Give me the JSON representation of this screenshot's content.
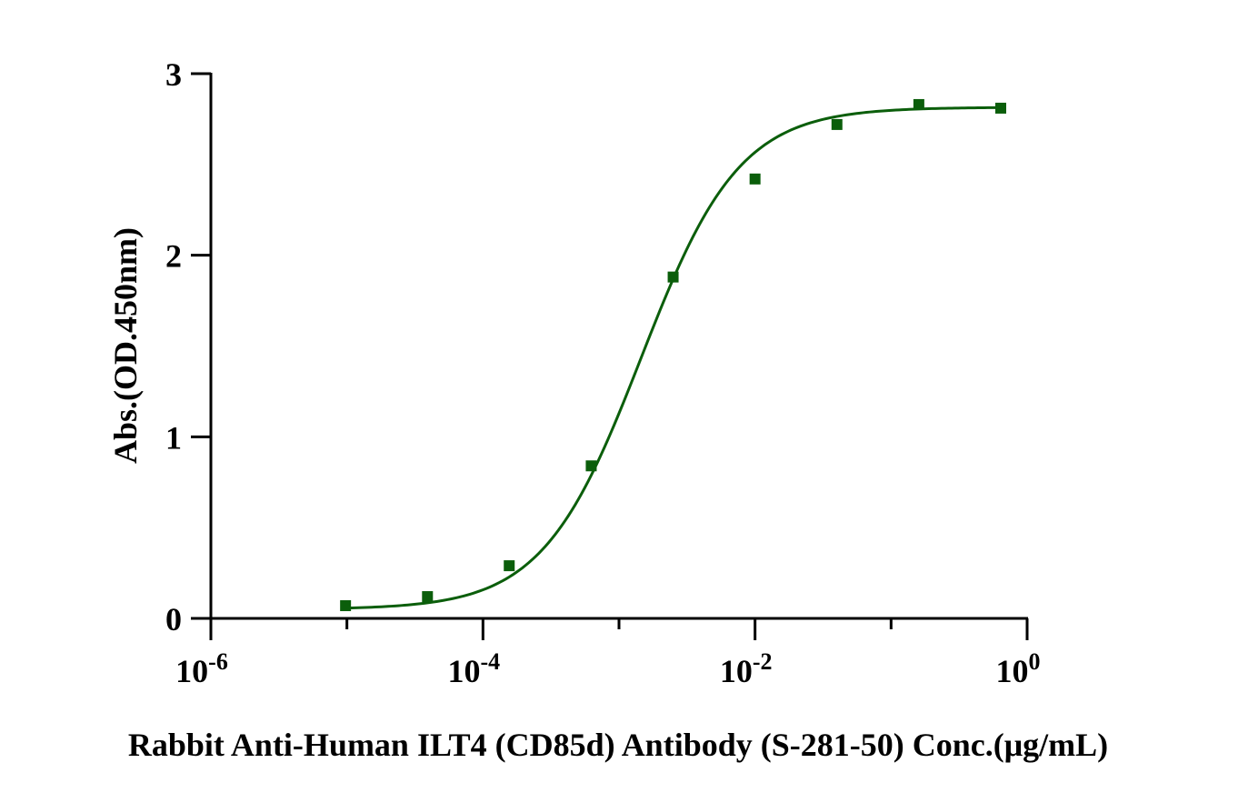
{
  "chart_data": {
    "type": "scatter",
    "x_scale": "log",
    "xlabel": "Rabbit Anti-Human ILT4 (CD85d) Antibody (S-281-50)  Conc.(μg/mL)",
    "ylabel": "Abs.(OD.450nm)",
    "xlim": [
      1e-06,
      1
    ],
    "ylim": [
      0,
      3
    ],
    "x_ticks": [
      {
        "value": 1e-06,
        "base": "10",
        "exp": "-6"
      },
      {
        "value": 0.0001,
        "base": "10",
        "exp": "-4"
      },
      {
        "value": 0.01,
        "base": "10",
        "exp": "-2"
      },
      {
        "value": 1,
        "base": "10",
        "exp": "0"
      }
    ],
    "y_ticks": [
      {
        "value": 0,
        "label": "0"
      },
      {
        "value": 1,
        "label": "1"
      },
      {
        "value": 2,
        "label": "2"
      },
      {
        "value": 3,
        "label": "3"
      }
    ],
    "grid": false,
    "legend": "none",
    "series": [
      {
        "marker": "square",
        "color": "#0b5e0b",
        "points": [
          {
            "x": 9.77e-06,
            "y": 0.07
          },
          {
            "x": 3.91e-05,
            "y": 0.12
          },
          {
            "x": 0.000156,
            "y": 0.29
          },
          {
            "x": 0.000625,
            "y": 0.84
          },
          {
            "x": 0.0025,
            "y": 1.88
          },
          {
            "x": 0.01,
            "y": 2.42
          },
          {
            "x": 0.04,
            "y": 2.72
          },
          {
            "x": 0.16,
            "y": 2.83
          },
          {
            "x": 0.64,
            "y": 2.81
          }
        ],
        "fit": {
          "model": "4PL",
          "bottom": 0.05,
          "top": 2.815,
          "ec50": 0.00145,
          "hill": 1.2,
          "x_range": [
            9.77e-06,
            0.64
          ]
        }
      }
    ]
  }
}
